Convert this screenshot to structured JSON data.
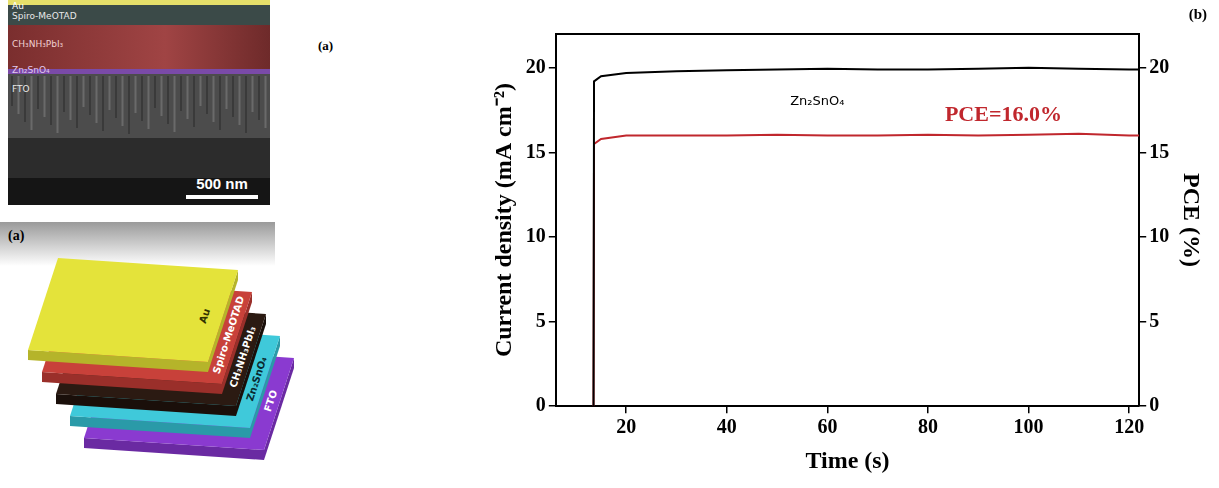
{
  "diagram": {
    "sem": {
      "label": "(a)",
      "layers": [
        "Au",
        "Spiro-MeOTAD",
        "CH₃NH₃PbI₃",
        "Zn₂SnO₄",
        "FTO"
      ],
      "scale_bar": "500 nm"
    },
    "schematic": {
      "label": "(a)",
      "layers": [
        "Au",
        "Spiro-MeOTAD",
        "CH₃NH₃PbI₃",
        "Zn₂SnO₄",
        "FTO"
      ]
    }
  },
  "chart_data": {
    "type": "line",
    "panel": "(b)",
    "x_label": "Time (s)",
    "y_label": "Current density (mA cm⁻²)",
    "y2_label": "PCE (%)",
    "x": [
      13.5,
      13.6,
      15,
      20,
      30,
      40,
      50,
      60,
      70,
      80,
      90,
      100,
      110,
      120,
      122
    ],
    "series": [
      {
        "color": "#000000",
        "values": [
          0,
          19.2,
          19.5,
          19.7,
          19.8,
          19.85,
          19.9,
          19.95,
          19.9,
          19.9,
          19.95,
          20.0,
          19.95,
          19.9,
          19.9
        ]
      },
      {
        "color": "#c0272d",
        "axis": "y2",
        "values": [
          0,
          15.5,
          15.8,
          16.0,
          16.0,
          16.0,
          16.05,
          16.0,
          16.0,
          16.05,
          16.0,
          16.05,
          16.1,
          16.0,
          16.0
        ]
      }
    ],
    "annotations": [
      {
        "text": "Zn₂SnO₄",
        "x": 58,
        "y": 18.0,
        "color": "#000000"
      },
      {
        "text": "PCE=16.0%",
        "x": 95,
        "y": 17.2,
        "color": "#c0272d",
        "axis": "y2"
      }
    ],
    "xlim": [
      6,
      122
    ],
    "xticks": [
      20,
      40,
      60,
      80,
      100,
      120
    ],
    "ylim": [
      0,
      22
    ],
    "yticks": [
      0,
      5,
      10,
      15,
      20
    ],
    "y2lim": [
      0,
      22
    ],
    "y2ticks": [
      0,
      5,
      10,
      15,
      20
    ],
    "grid": false
  }
}
